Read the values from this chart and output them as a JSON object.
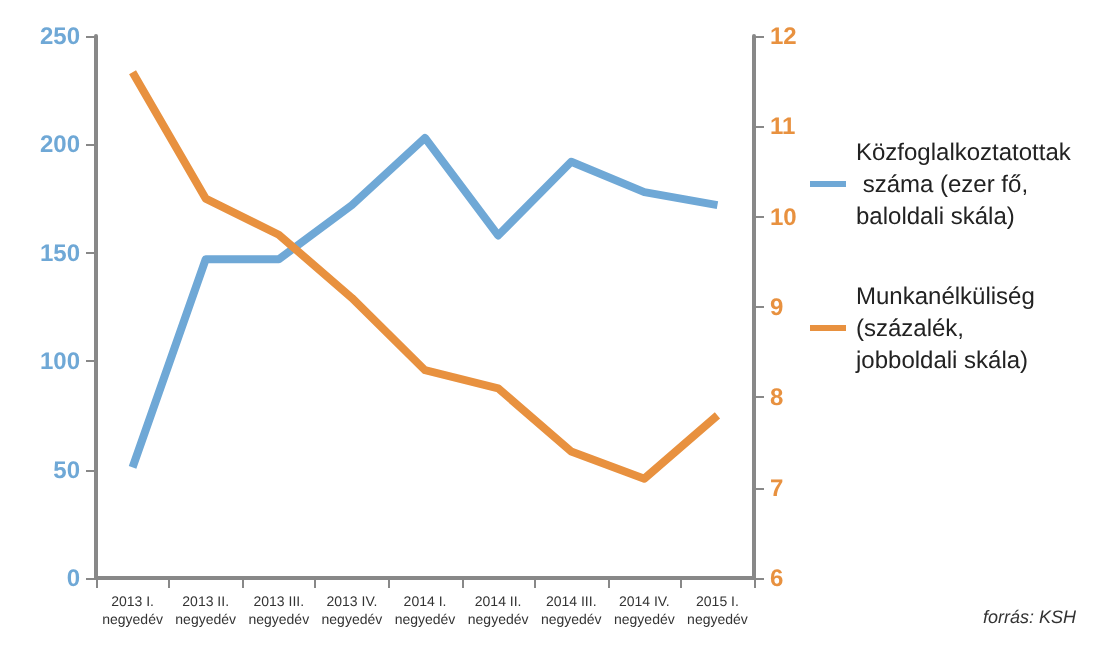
{
  "chart_data": {
    "type": "line",
    "categories": [
      "2013 I. negyedév",
      "2013 II. negyedév",
      "2013 III. negyedév",
      "2013 IV. negyedév",
      "2014 I. negyedév",
      "2014 II. negyedév",
      "2014 III. negyedév",
      "2014 IV. negyedév",
      "2015 I. negyedév"
    ],
    "series": [
      {
        "name": "Közfoglalkoztatottak száma (ezer fő, baloldali skála)",
        "color": "#6fa8d6",
        "values": [
          51,
          147,
          147,
          172,
          203,
          158,
          192,
          178,
          172
        ]
      },
      {
        "name": "Munkanélküliség (százalék, jobboldali skála)",
        "color": "#e8913f",
        "axis": "y2",
        "values": [
          11.6,
          10.2,
          9.8,
          9.1,
          8.3,
          8.1,
          7.4,
          7.1,
          7.8
        ]
      }
    ],
    "ylim": [
      0,
      250
    ],
    "yticks": [
      0,
      50,
      100,
      150,
      200,
      250
    ],
    "y2lim": [
      6,
      12
    ],
    "y2ticks": [
      6,
      7,
      8,
      9,
      10,
      11,
      12
    ],
    "grid": false,
    "legend": "right",
    "marker": "none",
    "line_style": "solid",
    "annotations": [
      "forrás: KSH"
    ]
  }
}
